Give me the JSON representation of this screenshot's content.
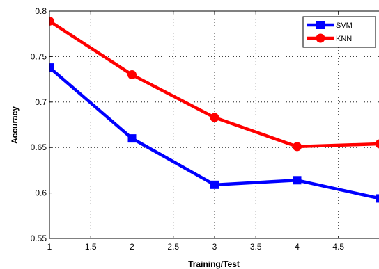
{
  "chart_data": {
    "type": "line",
    "title": "",
    "xlabel": "Training/Test",
    "ylabel": "Accuracy",
    "xlim": [
      1,
      5
    ],
    "ylim": [
      0.55,
      0.8
    ],
    "xticks": [
      1,
      1.5,
      2,
      2.5,
      3,
      3.5,
      4,
      4.5
    ],
    "xtick_labels": [
      "1",
      "1.5",
      "2",
      "2.5",
      "3",
      "3.5",
      "4",
      "4.5"
    ],
    "yticks": [
      0.55,
      0.6,
      0.65,
      0.7,
      0.75,
      0.8
    ],
    "ytick_labels": [
      "0.55",
      "0.6",
      "0.65",
      "0.7",
      "0.75",
      "0.8"
    ],
    "grid": true,
    "legend_position": "top-right",
    "x": [
      1,
      2,
      3,
      4,
      5
    ],
    "series": [
      {
        "name": "SVM",
        "color": "#0000ff",
        "marker": "square",
        "values": [
          0.738,
          0.66,
          0.609,
          0.614,
          0.594
        ]
      },
      {
        "name": "KNN",
        "color": "#ff0000",
        "marker": "circle",
        "values": [
          0.789,
          0.73,
          0.683,
          0.651,
          0.654
        ]
      }
    ]
  }
}
